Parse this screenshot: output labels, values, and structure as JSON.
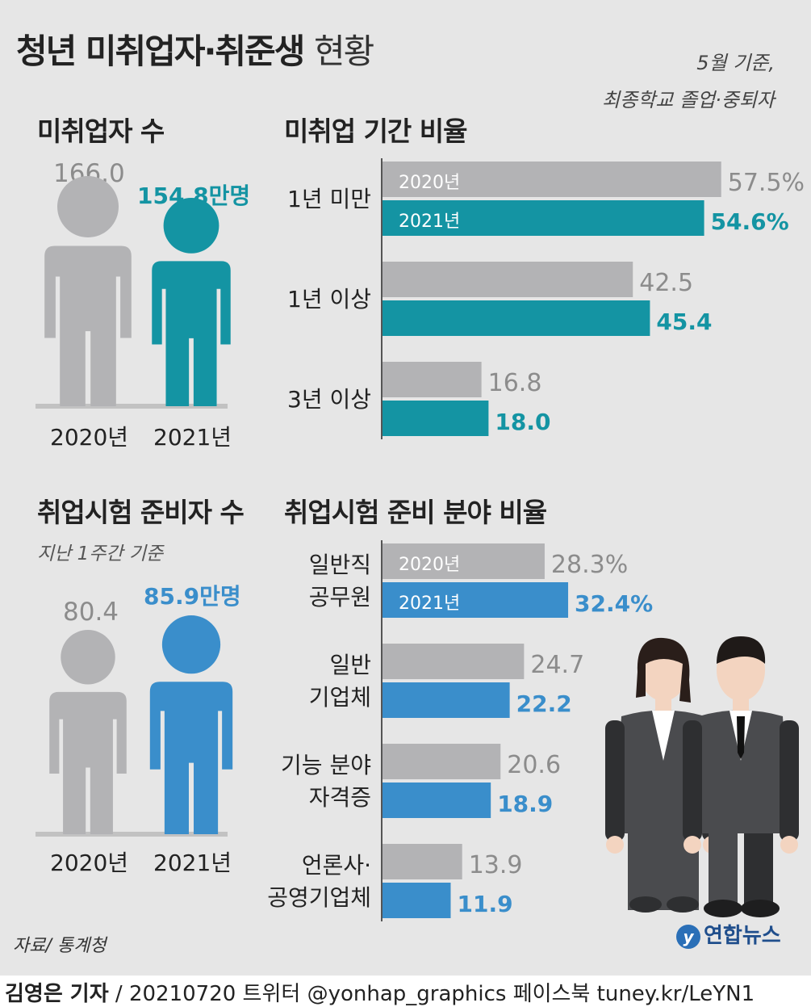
{
  "title_main": "청년 미취업자·취준생",
  "title_thin": "현황",
  "note_line1": "5월 기준,",
  "note_line2": "최종학교 졸업·중퇴자",
  "colors": {
    "gray": "#b3b3b5",
    "teal": "#1494a3",
    "blue": "#3a8ecb",
    "gray_text": "#8c8c8c"
  },
  "section1": {
    "people_title": "미취업자 수",
    "bars_title": "미취업 기간 비율",
    "years": [
      "2020년",
      "2021년"
    ],
    "value_2020": "166.0",
    "value_2021": "154.8만명"
  },
  "section2": {
    "people_title": "취업시험 준비자 수",
    "people_subtitle": "지난 1주간 기준",
    "bars_title": "취업시험 준비 분야 비율",
    "years": [
      "2020년",
      "2021년"
    ],
    "value_2020": "80.4",
    "value_2021": "85.9만명"
  },
  "chart_data": [
    {
      "type": "bar",
      "title": "미취업자 수",
      "categories": [
        "2020년",
        "2021년"
      ],
      "values": [
        166.0,
        154.8
      ],
      "unit": "만명"
    },
    {
      "type": "bar",
      "title": "미취업 기간 비율",
      "orientation": "horizontal",
      "categories": [
        "1년 미만",
        "1년 이상",
        "3년 이상"
      ],
      "series": [
        {
          "name": "2020년",
          "values": [
            57.5,
            42.5,
            16.8
          ],
          "labels": [
            "57.5%",
            "42.5",
            "16.8"
          ]
        },
        {
          "name": "2021년",
          "values": [
            54.6,
            45.4,
            18.0
          ],
          "labels": [
            "54.6%",
            "45.4",
            "18.0"
          ]
        }
      ]
    },
    {
      "type": "bar",
      "title": "취업시험 준비자 수",
      "categories": [
        "2020년",
        "2021년"
      ],
      "values": [
        80.4,
        85.9
      ],
      "unit": "만명"
    },
    {
      "type": "bar",
      "title": "취업시험 준비 분야 비율",
      "orientation": "horizontal",
      "categories": [
        "일반직 공무원",
        "일반 기업체",
        "기능 분야 자격증",
        "언론사· 공영기업체"
      ],
      "series": [
        {
          "name": "2020년",
          "values": [
            28.3,
            24.7,
            20.6,
            13.9
          ],
          "labels": [
            "28.3%",
            "24.7",
            "20.6",
            "13.9"
          ]
        },
        {
          "name": "2021년",
          "values": [
            32.4,
            22.2,
            18.9,
            11.9
          ],
          "labels": [
            "32.4%",
            "22.2",
            "18.9",
            "11.9"
          ]
        }
      ]
    }
  ],
  "bars1_categories": [
    [
      "1년 미만"
    ],
    [
      "1년 이상"
    ],
    [
      "3년 이상"
    ]
  ],
  "bars2_categories": [
    [
      "일반직",
      "공무원"
    ],
    [
      "일반",
      "기업체"
    ],
    [
      "기능 분야",
      "자격증"
    ],
    [
      "언론사·",
      "공영기업체"
    ]
  ],
  "source": "자료/ 통계청",
  "logo": "연합뉴스",
  "logo_mark": "y",
  "footer": {
    "reporter": "김영은 기자",
    "rest": " / 20210720  트위터 @yonhap_graphics  페이스북 tuney.kr/LeYN1"
  }
}
